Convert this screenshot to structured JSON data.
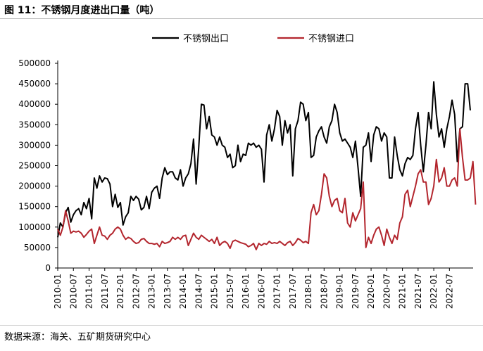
{
  "title": "图 11：不锈钢月度进出口量（吨）",
  "source": "数据来源：海关、五矿期货研究中心",
  "chart_data": {
    "type": "line",
    "title": "",
    "xlabel": "",
    "ylabel": "",
    "ylim": [
      0,
      500000
    ],
    "yticks": [
      0,
      50000,
      100000,
      150000,
      200000,
      250000,
      300000,
      350000,
      400000,
      450000,
      500000
    ],
    "xticks": [
      "2010-01",
      "2010-07",
      "2011-01",
      "2011-07",
      "2012-01",
      "2012-07",
      "2013-01",
      "2013-07",
      "2014-01",
      "2014-07",
      "2015-01",
      "2015-07",
      "2016-01",
      "2016-07",
      "2017-01",
      "2017-07",
      "2018-01",
      "2018-07",
      "2019-01",
      "2019-07",
      "2020-01",
      "2020-07",
      "2021-01",
      "2021-07",
      "2022-01",
      "2022-07"
    ],
    "grid": false,
    "legend_position": "top",
    "series": [
      {
        "name": "不锈钢出口",
        "color": "#000000",
        "values": [
          75000,
          110000,
          100000,
          135000,
          148000,
          112000,
          130000,
          140000,
          145000,
          130000,
          160000,
          145000,
          170000,
          120000,
          220000,
          195000,
          225000,
          210000,
          220000,
          218000,
          205000,
          150000,
          180000,
          148000,
          160000,
          105000,
          125000,
          135000,
          175000,
          165000,
          175000,
          168000,
          142000,
          148000,
          175000,
          145000,
          185000,
          195000,
          200000,
          170000,
          220000,
          245000,
          228000,
          235000,
          235000,
          220000,
          215000,
          240000,
          200000,
          220000,
          230000,
          255000,
          315000,
          205000,
          295000,
          400000,
          398000,
          340000,
          370000,
          325000,
          320000,
          300000,
          320000,
          300000,
          295000,
          270000,
          278000,
          245000,
          250000,
          300000,
          260000,
          278000,
          275000,
          305000,
          300000,
          305000,
          295000,
          300000,
          290000,
          210000,
          325000,
          350000,
          310000,
          340000,
          385000,
          370000,
          300000,
          360000,
          330000,
          350000,
          225000,
          340000,
          360000,
          405000,
          400000,
          360000,
          380000,
          270000,
          275000,
          320000,
          335000,
          345000,
          320000,
          305000,
          345000,
          360000,
          400000,
          380000,
          330000,
          310000,
          315000,
          305000,
          295000,
          270000,
          310000,
          245000,
          175000,
          295000,
          300000,
          330000,
          260000,
          325000,
          345000,
          340000,
          310000,
          330000,
          320000,
          220000,
          220000,
          320000,
          275000,
          240000,
          225000,
          255000,
          270000,
          265000,
          275000,
          340000,
          380000,
          300000,
          235000,
          300000,
          380000,
          340000,
          455000,
          375000,
          320000,
          340000,
          295000,
          340000,
          370000,
          410000,
          375000,
          260000,
          340000,
          345000,
          450000,
          450000,
          385000
        ]
      },
      {
        "name": "不锈钢进口",
        "color": "#b3262e",
        "values": [
          95000,
          80000,
          100000,
          140000,
          115000,
          85000,
          90000,
          88000,
          90000,
          85000,
          75000,
          82000,
          90000,
          95000,
          60000,
          80000,
          100000,
          80000,
          78000,
          70000,
          80000,
          85000,
          95000,
          100000,
          95000,
          80000,
          70000,
          75000,
          72000,
          65000,
          60000,
          62000,
          70000,
          72000,
          65000,
          60000,
          60000,
          58000,
          60000,
          52000,
          65000,
          60000,
          62000,
          65000,
          75000,
          70000,
          75000,
          70000,
          78000,
          80000,
          55000,
          70000,
          85000,
          75000,
          70000,
          80000,
          75000,
          70000,
          65000,
          70000,
          60000,
          75000,
          55000,
          62000,
          65000,
          60000,
          48000,
          65000,
          68000,
          65000,
          62000,
          60000,
          58000,
          52000,
          55000,
          60000,
          45000,
          60000,
          55000,
          60000,
          58000,
          65000,
          60000,
          62000,
          60000,
          65000,
          60000,
          55000,
          62000,
          65000,
          55000,
          62000,
          72000,
          68000,
          62000,
          65000,
          60000,
          135000,
          155000,
          130000,
          140000,
          180000,
          230000,
          220000,
          175000,
          150000,
          165000,
          170000,
          140000,
          135000,
          170000,
          110000,
          100000,
          135000,
          115000,
          130000,
          145000,
          210000,
          50000,
          75000,
          60000,
          80000,
          95000,
          100000,
          80000,
          55000,
          95000,
          75000,
          60000,
          80000,
          70000,
          110000,
          125000,
          180000,
          190000,
          150000,
          175000,
          200000,
          230000,
          240000,
          210000,
          210000,
          155000,
          170000,
          200000,
          265000,
          210000,
          220000,
          245000,
          200000,
          200000,
          215000,
          220000,
          200000,
          340000,
          270000,
          215000,
          215000,
          220000,
          260000,
          155000
        ]
      }
    ]
  }
}
